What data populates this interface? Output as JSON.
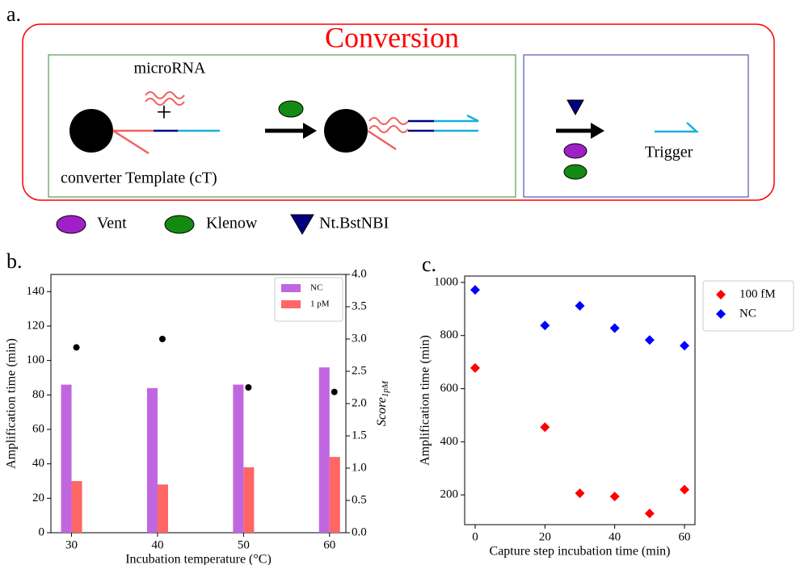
{
  "diagram": {
    "panel_label": "a.",
    "title": "Conversion",
    "microrna": "microRNA",
    "plus": "+",
    "template": "converter Template (cT)",
    "trigger": "Trigger",
    "legend": [
      "Vent",
      "Klenow",
      "Nt.BstNBI"
    ]
  },
  "panel_labels": [
    "b.",
    "c."
  ],
  "chart_data": [
    {
      "type": "bar",
      "x": [
        30,
        40,
        50,
        60
      ],
      "xlim": [
        27.6,
        61.9
      ],
      "xticks": [
        30,
        40,
        50,
        60
      ],
      "xlabel": "Incubation temperature (°C)",
      "ylabel": "Amplification time (min)",
      "y2label": {
        "main": "Score",
        "sub": "1pM"
      },
      "ylim": [
        0,
        150
      ],
      "yticks": [
        0,
        20,
        40,
        60,
        80,
        100,
        120,
        140
      ],
      "y2lim": [
        0,
        4.0
      ],
      "y2ticks": [
        {
          "value": 0,
          "label": "0.0"
        },
        0.5,
        {
          "value": 1,
          "label": "1.0"
        },
        1.5,
        {
          "value": 2,
          "label": "2.0"
        },
        2.5,
        {
          "value": 3,
          "label": "3.0"
        },
        3.5,
        {
          "value": 4,
          "label": "4.0"
        }
      ],
      "legend": "upper right",
      "series": [
        {
          "name": "NC",
          "color": "#c066e0",
          "values": [
            86,
            84,
            86,
            96
          ]
        },
        {
          "name": "1 pM",
          "color": "#ff6666",
          "values": [
            30,
            28,
            38,
            44
          ]
        },
        {
          "type": "scatter",
          "axis": "y2",
          "color": "#000000",
          "values": [
            2.87,
            3.0,
            2.25,
            2.18
          ]
        }
      ]
    },
    {
      "type": "scatter",
      "xlim": [
        -3,
        63
      ],
      "xticks": [
        0,
        20,
        40,
        60
      ],
      "xlabel": "Capture step incubation time (min)",
      "ylabel": "Amplification time (min)",
      "ylim": [
        88,
        1024
      ],
      "yticks": [
        200,
        400,
        600,
        800,
        1000
      ],
      "legend": "outside right",
      "series": [
        {
          "name": "100 fM",
          "color": "#ff0000",
          "x": [
            0,
            20,
            30,
            40,
            50,
            60
          ],
          "values": [
            678,
            455,
            206,
            194,
            130,
            220
          ]
        },
        {
          "name": "NC",
          "color": "#0000ff",
          "x": [
            0,
            20,
            30,
            40,
            50,
            60
          ],
          "values": [
            972,
            838,
            912,
            828,
            783,
            762
          ]
        }
      ]
    }
  ]
}
